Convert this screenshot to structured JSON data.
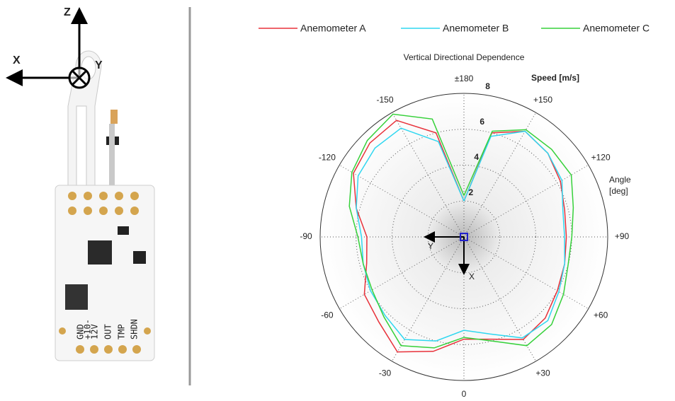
{
  "photo": {
    "axis_labels": {
      "z": "Z",
      "x": "X",
      "y": "Y"
    },
    "pin_labels": [
      "GND",
      "+10-",
      "12V",
      "OUT",
      "TMP",
      "SHDN"
    ]
  },
  "chart_data": {
    "type": "polar-line",
    "title": "Vertical Directional Dependence",
    "r_label": "Speed [m/s]",
    "angle_label": [
      "Angle",
      "[deg]"
    ],
    "annotations": [
      "Y",
      "X"
    ],
    "x": [
      -180,
      -165,
      -150,
      -135,
      -120,
      -105,
      -90,
      -75,
      -60,
      -45,
      -30,
      -15,
      0,
      15,
      30,
      45,
      60,
      75,
      90,
      105,
      120,
      135,
      150,
      165,
      180
    ],
    "series": [
      {
        "name": "Anemometer A",
        "color": "#e8313a",
        "values": [
          2.0,
          6.0,
          7.5,
          7.4,
          7.1,
          6.2,
          5.4,
          5.6,
          6.4,
          6.7,
          7.4,
          6.6,
          5.7,
          5.9,
          6.6,
          6.4,
          6.0,
          5.8,
          5.7,
          5.8,
          6.2,
          6.6,
          6.8,
          6.0,
          2.0
        ]
      },
      {
        "name": "Anemometer B",
        "color": "#2fd7f0",
        "values": [
          2.0,
          5.5,
          7.0,
          7.0,
          6.8,
          6.2,
          5.7,
          5.8,
          6.0,
          6.2,
          6.6,
          6.0,
          5.2,
          5.6,
          6.5,
          6.6,
          6.1,
          5.8,
          5.6,
          5.7,
          6.3,
          6.6,
          6.8,
          5.8,
          2.0
        ]
      },
      {
        "name": "Anemometer C",
        "color": "#36d13a",
        "values": [
          2.3,
          6.8,
          7.9,
          7.6,
          7.2,
          6.6,
          5.9,
          5.8,
          5.9,
          6.3,
          7.0,
          6.4,
          5.6,
          6.0,
          7.0,
          6.9,
          6.4,
          6.0,
          6.0,
          6.3,
          6.9,
          6.9,
          6.9,
          6.1,
          2.3
        ]
      }
    ],
    "rlim": [
      0,
      8
    ],
    "rticks": [
      2,
      4,
      6,
      8
    ],
    "angle_ticks": [
      0,
      {
        "value": 30,
        "label": "+30"
      },
      {
        "value": 60,
        "label": "+60"
      },
      {
        "value": 90,
        "label": "+90"
      },
      {
        "value": 120,
        "label": "+120"
      },
      {
        "value": 150,
        "label": "+150"
      },
      {
        "value": 180,
        "label": "±180"
      },
      -150,
      -120,
      -90,
      -60,
      -30
    ],
    "grid": true
  }
}
